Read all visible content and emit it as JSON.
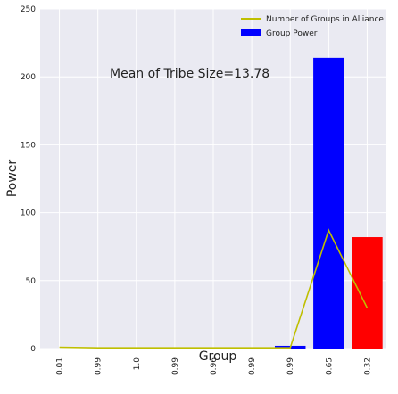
{
  "chart_data": {
    "type": "bar",
    "title": "",
    "xlabel": "Group",
    "ylabel": "Power",
    "categories": [
      "0.01",
      "0.99",
      "1.0",
      "0.99",
      "0.96",
      "0.99",
      "0.99",
      "0.65",
      "0.32"
    ],
    "ylim": [
      0,
      250
    ],
    "yticks": [
      0,
      50,
      100,
      150,
      200,
      250
    ],
    "grid": true,
    "legend_position": "top-right",
    "annotation": "Mean of Tribe Size=13.78",
    "series": [
      {
        "name": "Group Power",
        "kind": "bar",
        "values": [
          0,
          0,
          0,
          0,
          0,
          0,
          2,
          214,
          82
        ],
        "colors": [
          "#0000ff",
          "#0000ff",
          "#0000ff",
          "#0000ff",
          "#0000ff",
          "#0000ff",
          "#0000ff",
          "#0000ff",
          "#ff0000"
        ]
      },
      {
        "name": "Number of Groups in Alliance",
        "kind": "line",
        "color": "#bfbf00",
        "values": [
          1,
          0.5,
          0.5,
          0.5,
          0.5,
          0.5,
          0.5,
          87,
          30
        ]
      }
    ],
    "style": {
      "background": "#eaeaf2",
      "grid_color": "#ffffff"
    }
  }
}
